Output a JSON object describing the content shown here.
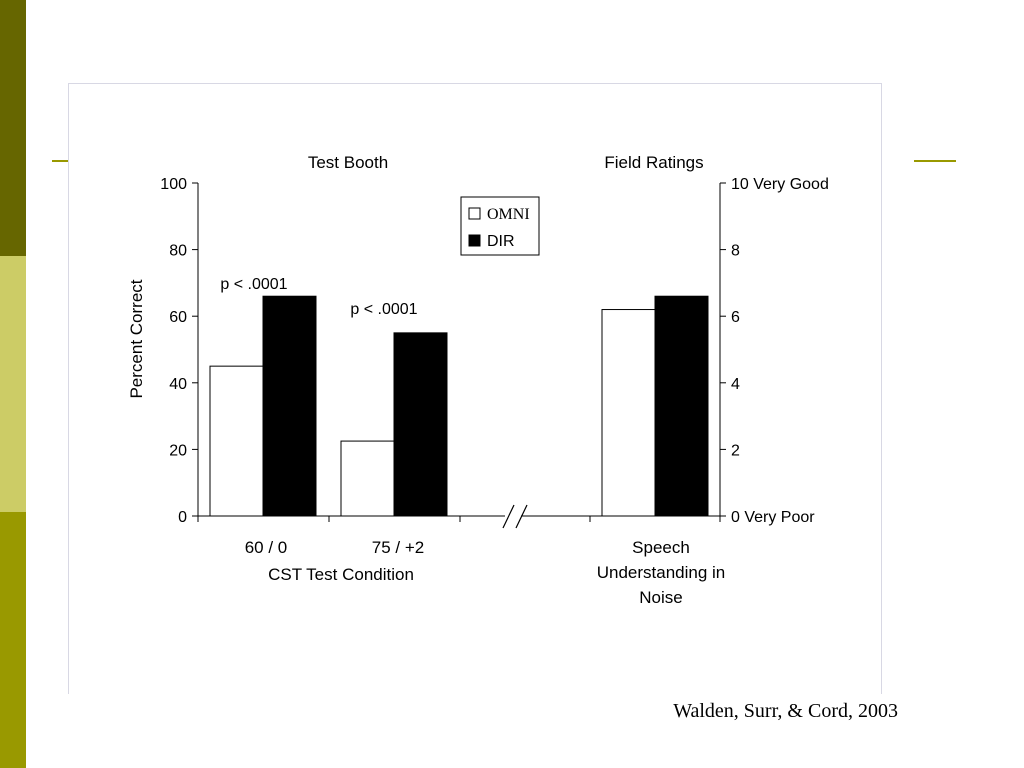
{
  "slide": {
    "citation": "Walden, Surr, & Cord, 2003",
    "colors": {
      "stripe_top": "#666600",
      "stripe_mid": "#cccc66",
      "stripe_bot": "#999900",
      "rule": "#999900"
    }
  },
  "chart_data": {
    "type": "bar",
    "section_titles": [
      "Test Booth",
      "Field Ratings"
    ],
    "ylabel": "Percent Correct",
    "xlabel": "CST Test Condition",
    "ylim": [
      0,
      100
    ],
    "yticks": [
      "0",
      "20",
      "40",
      "60",
      "80",
      "100"
    ],
    "ylim_right": [
      0,
      10
    ],
    "yticks_right": [
      "0  Very Poor",
      "2",
      "4",
      "6",
      "8",
      "10 Very Good"
    ],
    "categories": [
      "60 / 0",
      "75 / +2",
      "Speech Understanding in Noise"
    ],
    "category_lines": [
      [
        "60 / 0"
      ],
      [
        "75 / +2"
      ],
      [
        "Speech",
        "Understanding in",
        "Noise"
      ]
    ],
    "axis_break": "//",
    "series": [
      {
        "name": "OMNI",
        "color": "#ffffff",
        "values": [
          45,
          22.5,
          6.2
        ],
        "axis": [
          "left",
          "left",
          "right"
        ]
      },
      {
        "name": "DIR",
        "color": "#000000",
        "values": [
          66,
          55,
          6.6
        ],
        "axis": [
          "left",
          "left",
          "right"
        ]
      }
    ],
    "annotations": [
      "p < .0001",
      "p < .0001"
    ],
    "legend": {
      "placement": "top-center",
      "entries": [
        "OMNI",
        "DIR"
      ]
    }
  }
}
